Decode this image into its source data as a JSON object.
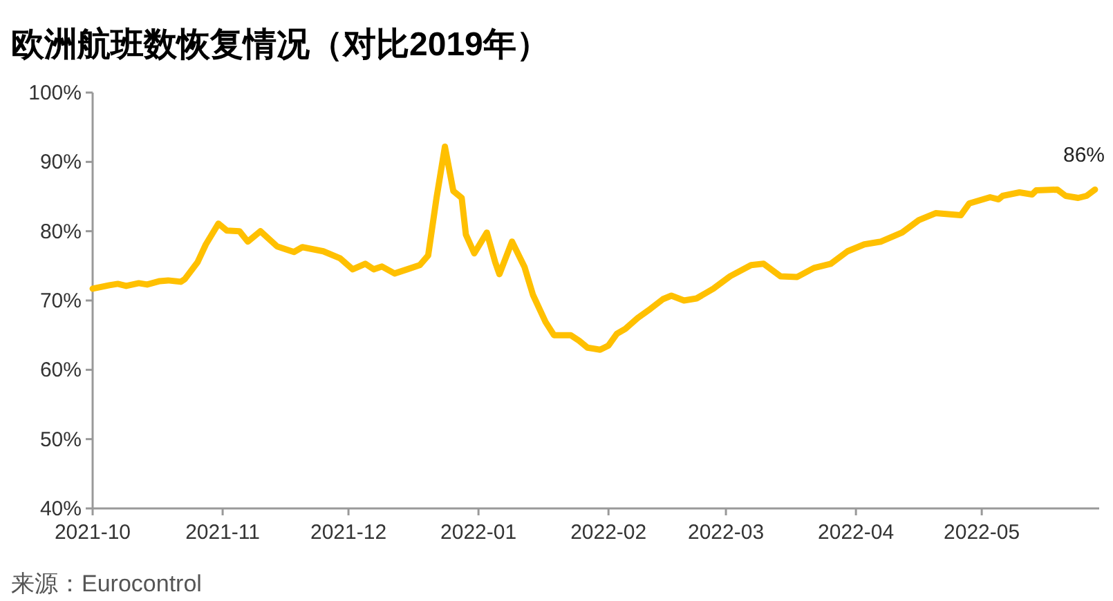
{
  "chart_data": {
    "type": "line",
    "title": "欧洲航班数恢复情况（对比2019年）",
    "annotations": [
      {
        "text": "86%",
        "x": "2022-05-28",
        "y": 86
      },
      "来源：Eurocontrol"
    ],
    "x": [
      "2021-10-01",
      "2021-10-05",
      "2021-10-07",
      "2021-10-09",
      "2021-10-12",
      "2021-10-14",
      "2021-10-17",
      "2021-10-19",
      "2021-10-22",
      "2021-10-23",
      "2021-10-26",
      "2021-10-28",
      "2021-10-31",
      "2021-11-02",
      "2021-11-05",
      "2021-11-07",
      "2021-11-10",
      "2021-11-14",
      "2021-11-18",
      "2021-11-20",
      "2021-11-25",
      "2021-11-29",
      "2021-12-02",
      "2021-12-05",
      "2021-12-07",
      "2021-12-09",
      "2021-12-12",
      "2021-12-15",
      "2021-12-18",
      "2021-12-20",
      "2021-12-22",
      "2021-12-24",
      "2021-12-26",
      "2021-12-28",
      "2021-12-29",
      "2021-12-31",
      "2022-01-03",
      "2022-01-05",
      "2022-01-06",
      "2022-01-09",
      "2022-01-12",
      "2022-01-14",
      "2022-01-17",
      "2022-01-19",
      "2022-01-23",
      "2022-01-25",
      "2022-01-27",
      "2022-01-30",
      "2022-02-01",
      "2022-02-03",
      "2022-02-05",
      "2022-02-08",
      "2022-02-11",
      "2022-02-14",
      "2022-02-16",
      "2022-02-19",
      "2022-02-22",
      "2022-02-26",
      "2022-03-02",
      "2022-03-07",
      "2022-03-10",
      "2022-03-14",
      "2022-03-18",
      "2022-03-22",
      "2022-03-26",
      "2022-03-30",
      "2022-04-03",
      "2022-04-07",
      "2022-04-12",
      "2022-04-16",
      "2022-04-20",
      "2022-04-26",
      "2022-04-28",
      "2022-05-03",
      "2022-05-05",
      "2022-05-06",
      "2022-05-10",
      "2022-05-13",
      "2022-05-14",
      "2022-05-19",
      "2022-05-21",
      "2022-05-24",
      "2022-05-26",
      "2022-05-28"
    ],
    "series": [
      {
        "color": "#ffc000",
        "values": [
          71.7,
          72.2,
          72.4,
          72.1,
          72.5,
          72.3,
          72.8,
          72.9,
          72.7,
          73.1,
          75.5,
          78.1,
          81.1,
          80.1,
          80.0,
          78.5,
          80.0,
          77.8,
          77.0,
          77.7,
          77.1,
          76.1,
          74.5,
          75.3,
          74.5,
          74.9,
          73.9,
          74.5,
          75.1,
          76.5,
          84.8,
          92.2,
          85.8,
          84.8,
          79.5,
          76.8,
          79.8,
          75.5,
          73.8,
          78.5,
          74.8,
          70.8,
          66.9,
          65.0,
          65.0,
          64.2,
          63.2,
          62.9,
          63.5,
          65.2,
          65.9,
          67.5,
          68.8,
          70.2,
          70.7,
          70.0,
          70.3,
          71.7,
          73.5,
          75.1,
          75.3,
          73.5,
          73.4,
          74.7,
          75.3,
          77.1,
          78.1,
          78.5,
          79.8,
          81.6,
          82.6,
          82.3,
          84.0,
          84.9,
          84.6,
          85.1,
          85.6,
          85.3,
          85.9,
          86.0,
          85.1,
          84.8,
          85.1,
          86.0
        ]
      }
    ],
    "xlim": [
      "2021-10-01",
      "2022-05-29"
    ],
    "xticks": [
      {
        "value": "2021-10-01",
        "label": "2021-10"
      },
      {
        "value": "2021-11-01",
        "label": "2021-11"
      },
      {
        "value": "2021-12-01",
        "label": "2021-12"
      },
      {
        "value": "2022-01-01",
        "label": "2022-01"
      },
      {
        "value": "2022-02-01",
        "label": "2022-02"
      },
      {
        "value": "2022-03-01",
        "label": "2022-03"
      },
      {
        "value": "2022-04-01",
        "label": "2022-04"
      },
      {
        "value": "2022-05-01",
        "label": "2022-05"
      }
    ],
    "ylim": [
      40,
      100
    ],
    "yticks": [
      {
        "value": 40,
        "label": "40%"
      },
      {
        "value": 50,
        "label": "50%"
      },
      {
        "value": 60,
        "label": "60%"
      },
      {
        "value": 70,
        "label": "70%"
      },
      {
        "value": 80,
        "label": "80%"
      },
      {
        "value": 90,
        "label": "90%"
      },
      {
        "value": 100,
        "label": "100%"
      }
    ],
    "grid": false
  }
}
